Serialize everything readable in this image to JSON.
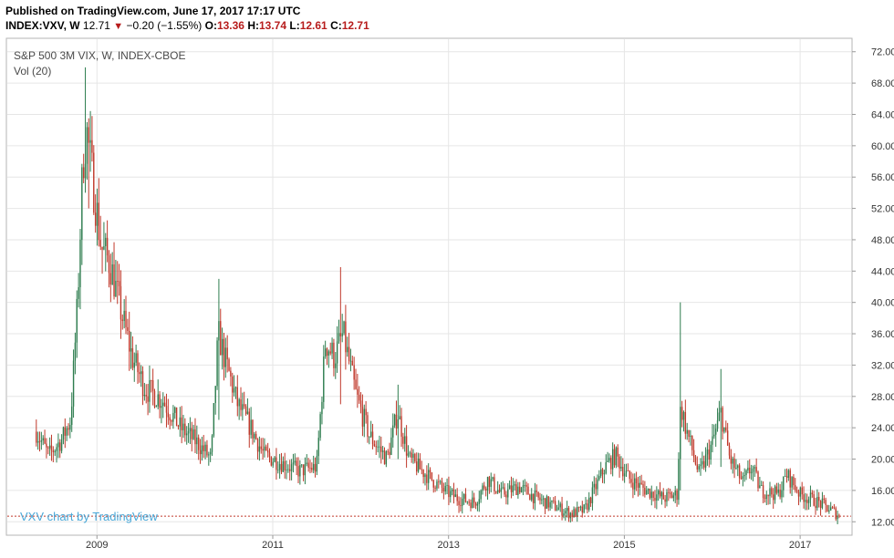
{
  "header": {
    "published": "Published on TradingView.com, June 17, 2017 17:17 UTC",
    "symbol": "INDEX:VXV, W",
    "last": "12.71",
    "change": "−0.20 (−1.55%)",
    "open_label": "O:",
    "open": "13.36",
    "high_label": "H:",
    "high": "13.74",
    "low_label": "L:",
    "low": "12.61",
    "close_label": "C:",
    "close": "12.71"
  },
  "chart_data": {
    "type": "candlestick",
    "title": "S&P 500 3M VIX, W, INDEX-CBOE",
    "subtitle": "Vol (20)",
    "watermark": "VXV chart by TradingView",
    "ylim": [
      10.4,
      73.6
    ],
    "yticks": [
      "72.00",
      "68.00",
      "64.00",
      "60.00",
      "56.00",
      "52.00",
      "48.00",
      "44.00",
      "40.00",
      "36.00",
      "32.00",
      "28.00",
      "24.00",
      "20.00",
      "16.00",
      "12.00"
    ],
    "xticks": [
      "2009",
      "2011",
      "2013",
      "2015",
      "2017"
    ],
    "x_range": [
      2007.98,
      2017.58
    ],
    "last_price": 12.71,
    "colors": {
      "up": "#2e7d4f",
      "down": "#c0392b",
      "grid": "#e6e6e6",
      "last_line": "#c0392b"
    },
    "key_points": [
      {
        "x": 2008.31,
        "y": 23.5
      },
      {
        "x": 2008.45,
        "y": 20.5
      },
      {
        "x": 2008.6,
        "y": 22.5
      },
      {
        "x": 2008.7,
        "y": 25.0
      },
      {
        "x": 2008.78,
        "y": 40.0
      },
      {
        "x": 2008.84,
        "y": 58.0
      },
      {
        "x": 2008.88,
        "y": 62.0
      },
      {
        "x": 2008.96,
        "y": 55.0
      },
      {
        "x": 2009.05,
        "y": 47.0
      },
      {
        "x": 2009.15,
        "y": 45.0
      },
      {
        "x": 2009.25,
        "y": 40.0
      },
      {
        "x": 2009.4,
        "y": 33.0
      },
      {
        "x": 2009.55,
        "y": 29.0
      },
      {
        "x": 2009.75,
        "y": 27.5
      },
      {
        "x": 2009.95,
        "y": 24.0
      },
      {
        "x": 2010.15,
        "y": 22.0
      },
      {
        "x": 2010.3,
        "y": 20.0
      },
      {
        "x": 2010.38,
        "y": 36.0
      },
      {
        "x": 2010.45,
        "y": 33.0
      },
      {
        "x": 2010.6,
        "y": 27.0
      },
      {
        "x": 2010.75,
        "y": 24.0
      },
      {
        "x": 2010.9,
        "y": 20.5
      },
      {
        "x": 2011.1,
        "y": 19.5
      },
      {
        "x": 2011.3,
        "y": 18.5
      },
      {
        "x": 2011.5,
        "y": 19.0
      },
      {
        "x": 2011.6,
        "y": 35.0
      },
      {
        "x": 2011.7,
        "y": 33.0
      },
      {
        "x": 2011.8,
        "y": 36.0
      },
      {
        "x": 2011.95,
        "y": 28.0
      },
      {
        "x": 2012.1,
        "y": 23.0
      },
      {
        "x": 2012.3,
        "y": 20.0
      },
      {
        "x": 2012.42,
        "y": 26.0
      },
      {
        "x": 2012.55,
        "y": 20.0
      },
      {
        "x": 2012.75,
        "y": 18.0
      },
      {
        "x": 2012.95,
        "y": 16.0
      },
      {
        "x": 2013.1,
        "y": 15.0
      },
      {
        "x": 2013.3,
        "y": 14.5
      },
      {
        "x": 2013.45,
        "y": 17.5
      },
      {
        "x": 2013.6,
        "y": 15.5
      },
      {
        "x": 2013.8,
        "y": 16.5
      },
      {
        "x": 2014.0,
        "y": 15.0
      },
      {
        "x": 2014.2,
        "y": 14.0
      },
      {
        "x": 2014.4,
        "y": 13.0
      },
      {
        "x": 2014.55,
        "y": 13.5
      },
      {
        "x": 2014.78,
        "y": 19.0
      },
      {
        "x": 2014.9,
        "y": 20.5
      },
      {
        "x": 2015.05,
        "y": 17.5
      },
      {
        "x": 2015.25,
        "y": 16.0
      },
      {
        "x": 2015.45,
        "y": 15.0
      },
      {
        "x": 2015.6,
        "y": 15.5
      },
      {
        "x": 2015.64,
        "y": 27.0
      },
      {
        "x": 2015.7,
        "y": 24.0
      },
      {
        "x": 2015.85,
        "y": 18.0
      },
      {
        "x": 2016.0,
        "y": 22.0
      },
      {
        "x": 2016.1,
        "y": 26.0
      },
      {
        "x": 2016.2,
        "y": 20.0
      },
      {
        "x": 2016.35,
        "y": 17.0
      },
      {
        "x": 2016.45,
        "y": 19.0
      },
      {
        "x": 2016.55,
        "y": 16.0
      },
      {
        "x": 2016.75,
        "y": 15.5
      },
      {
        "x": 2016.85,
        "y": 18.0
      },
      {
        "x": 2017.0,
        "y": 15.5
      },
      {
        "x": 2017.2,
        "y": 14.5
      },
      {
        "x": 2017.35,
        "y": 13.5
      },
      {
        "x": 2017.46,
        "y": 12.71
      }
    ],
    "spikes": [
      {
        "x": 2008.86,
        "high": 70.0,
        "low": 54.0
      },
      {
        "x": 2008.9,
        "high": 63.5,
        "low": 52.0
      },
      {
        "x": 2010.38,
        "high": 43.0,
        "low": 25.0
      },
      {
        "x": 2011.77,
        "high": 44.5,
        "low": 27.0
      },
      {
        "x": 2015.64,
        "high": 40.0,
        "low": 16.0
      },
      {
        "x": 2016.1,
        "high": 31.5,
        "low": 19.0
      },
      {
        "x": 2012.42,
        "high": 29.5,
        "low": 20.0
      }
    ]
  }
}
